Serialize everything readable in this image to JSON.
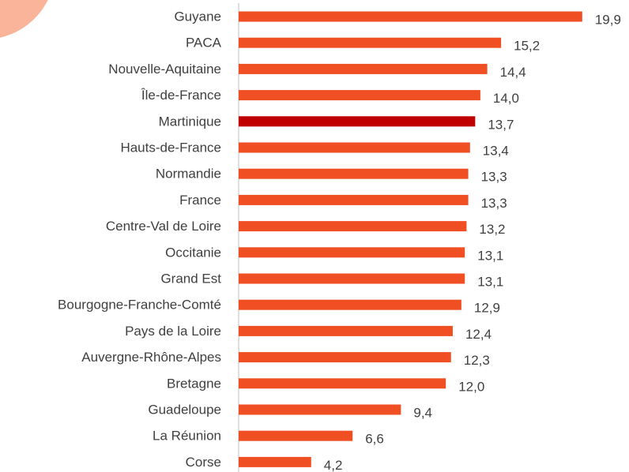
{
  "chart_data": {
    "type": "barh",
    "categories": [
      "Guyane",
      "PACA",
      "Nouvelle-Aquitaine",
      "Île-de-France",
      "Martinique",
      "Hauts-de-France",
      "Normandie",
      "France",
      "Centre-Val de Loire",
      "Occitanie",
      "Grand Est",
      "Bourgogne-Franche-Comté",
      "Pays de la Loire",
      "Auvergne-Rhône-Alpes",
      "Bretagne",
      "Guadeloupe",
      "La Réunion",
      "Corse"
    ],
    "values": [
      19.9,
      15.2,
      14.4,
      14.0,
      13.7,
      13.4,
      13.3,
      13.3,
      13.2,
      13.1,
      13.1,
      12.9,
      12.4,
      12.3,
      12.0,
      9.4,
      6.6,
      4.2
    ],
    "value_labels": [
      "19,9",
      "15,2",
      "14,4",
      "14,0",
      "13,7",
      "13,4",
      "13,3",
      "13,3",
      "13,2",
      "13,1",
      "13,1",
      "12,9",
      "12,4",
      "12,3",
      "12,0",
      "9,4",
      "6,6",
      "4,2"
    ],
    "colors": [
      "#f04e23",
      "#f04e23",
      "#f04e23",
      "#f04e23",
      "#c00000",
      "#f04e23",
      "#f04e23",
      "#f04e23",
      "#f04e23",
      "#f04e23",
      "#f04e23",
      "#f04e23",
      "#f04e23",
      "#f04e23",
      "#f04e23",
      "#f04e23",
      "#f04e23",
      "#f04e23"
    ],
    "xlim": [
      0,
      20
    ]
  }
}
